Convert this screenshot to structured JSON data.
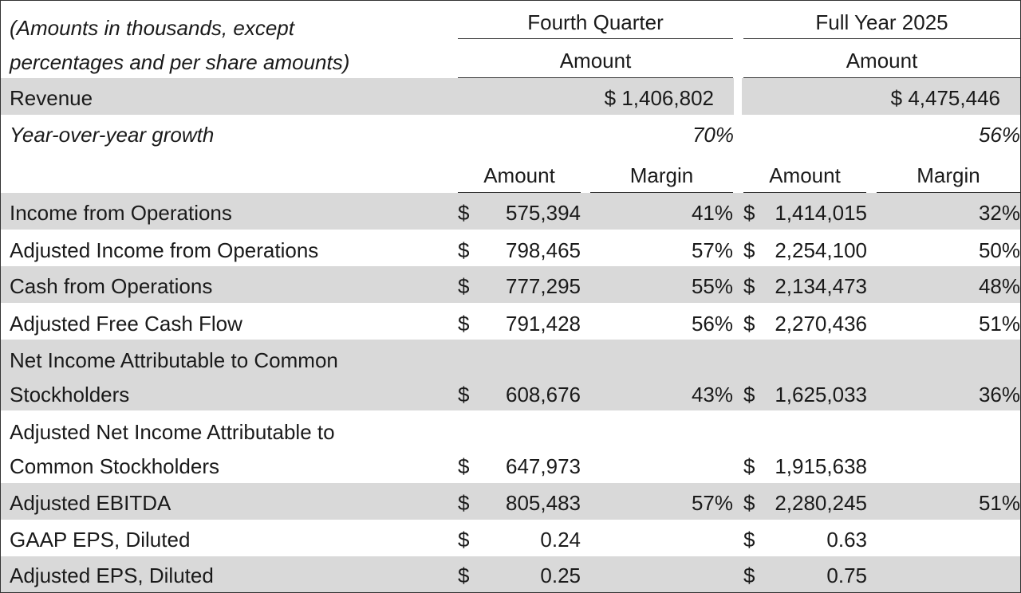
{
  "header": {
    "note_line1": "(Amounts in thousands, except",
    "note_line2": "percentages and per share amounts)",
    "fourth_quarter": "Fourth Quarter",
    "full_year": "Full Year 2025",
    "amount": "Amount",
    "margin": "Margin"
  },
  "revenue": {
    "label": "Revenue",
    "q4_amount": "$  1,406,802",
    "fy_amount": "$  4,475,446"
  },
  "growth": {
    "label": "Year-over-year growth",
    "q4": "70%",
    "fy": "56%"
  },
  "rows": [
    {
      "label": [
        "Income from Operations"
      ],
      "q4_dollar": "$",
      "q4_amount": "575,394",
      "q4_margin": "41%",
      "fy_dollar": "$",
      "fy_amount": "1,414,015",
      "fy_margin": "32%"
    },
    {
      "label": [
        "Adjusted Income from Operations"
      ],
      "q4_dollar": "$",
      "q4_amount": "798,465",
      "q4_margin": "57%",
      "fy_dollar": "$",
      "fy_amount": "2,254,100",
      "fy_margin": "50%"
    },
    {
      "label": [
        "Cash from Operations"
      ],
      "q4_dollar": "$",
      "q4_amount": "777,295",
      "q4_margin": "55%",
      "fy_dollar": "$",
      "fy_amount": "2,134,473",
      "fy_margin": "48%"
    },
    {
      "label": [
        "Adjusted Free Cash Flow"
      ],
      "q4_dollar": "$",
      "q4_amount": "791,428",
      "q4_margin": "56%",
      "fy_dollar": "$",
      "fy_amount": "2,270,436",
      "fy_margin": "51%"
    },
    {
      "label": [
        "Net Income Attributable to Common",
        "Stockholders"
      ],
      "q4_dollar": "$",
      "q4_amount": "608,676",
      "q4_margin": "43%",
      "fy_dollar": "$",
      "fy_amount": "1,625,033",
      "fy_margin": "36%"
    },
    {
      "label": [
        "Adjusted Net Income Attributable to",
        "Common Stockholders"
      ],
      "q4_dollar": "$",
      "q4_amount": "647,973",
      "q4_margin": "",
      "fy_dollar": "$",
      "fy_amount": "1,915,638",
      "fy_margin": ""
    },
    {
      "label": [
        "Adjusted EBITDA"
      ],
      "q4_dollar": "$",
      "q4_amount": "805,483",
      "q4_margin": "57%",
      "fy_dollar": "$",
      "fy_amount": "2,280,245",
      "fy_margin": "51%"
    },
    {
      "label": [
        "GAAP EPS, Diluted"
      ],
      "q4_dollar": "$",
      "q4_amount": "0.24",
      "q4_margin": "",
      "fy_dollar": "$",
      "fy_amount": "0.63",
      "fy_margin": ""
    },
    {
      "label": [
        "Adjusted EPS, Diluted"
      ],
      "q4_dollar": "$",
      "q4_amount": "0.25",
      "q4_margin": "",
      "fy_dollar": "$",
      "fy_amount": "0.75",
      "fy_margin": ""
    }
  ]
}
